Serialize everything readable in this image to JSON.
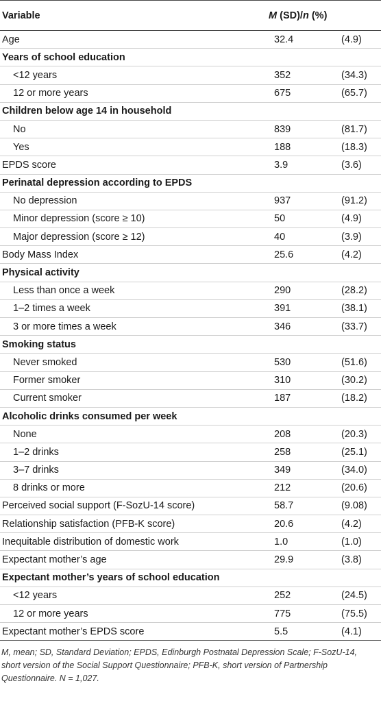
{
  "header": {
    "variable": "Variable",
    "stat_m": "M",
    "stat_sd": " (SD)/",
    "stat_n": "n",
    "stat_pct": " (%)"
  },
  "rows": [
    {
      "label": "Age",
      "kind": "plain",
      "m": "32.4",
      "p": "(4.9)"
    },
    {
      "label": "Years of school education",
      "kind": "section",
      "m": "",
      "p": ""
    },
    {
      "label": "<12 years",
      "kind": "indent",
      "m": "352",
      "p": "(34.3)"
    },
    {
      "label": "12 or more years",
      "kind": "indent",
      "m": "675",
      "p": "(65.7)"
    },
    {
      "label": "Children below age 14 in household",
      "kind": "section",
      "m": "",
      "p": ""
    },
    {
      "label": "No",
      "kind": "indent",
      "m": "839",
      "p": "(81.7)"
    },
    {
      "label": "Yes",
      "kind": "indent",
      "m": "188",
      "p": "(18.3)"
    },
    {
      "label": "EPDS score",
      "kind": "plain",
      "m": "3.9",
      "p": "(3.6)"
    },
    {
      "label": "Perinatal depression according to EPDS",
      "kind": "section",
      "m": "",
      "p": ""
    },
    {
      "label": "No depression",
      "kind": "indent",
      "m": "937",
      "p": "(91.2)"
    },
    {
      "label": "Minor depression (score ≥ 10)",
      "kind": "indent",
      "m": "50",
      "p": "(4.9)"
    },
    {
      "label": "Major depression (score ≥ 12)",
      "kind": "indent",
      "m": "40",
      "p": "(3.9)"
    },
    {
      "label": "Body Mass Index",
      "kind": "plain",
      "m": "25.6",
      "p": "(4.2)"
    },
    {
      "label": "Physical activity",
      "kind": "section",
      "m": "",
      "p": ""
    },
    {
      "label": "Less than once a week",
      "kind": "indent",
      "m": "290",
      "p": "(28.2)"
    },
    {
      "label": "1–2 times a week",
      "kind": "indent",
      "m": "391",
      "p": "(38.1)"
    },
    {
      "label": "3 or more times a week",
      "kind": "indent",
      "m": "346",
      "p": "(33.7)"
    },
    {
      "label": "Smoking status",
      "kind": "section",
      "m": "",
      "p": ""
    },
    {
      "label": "Never smoked",
      "kind": "indent",
      "m": "530",
      "p": "(51.6)"
    },
    {
      "label": "Former smoker",
      "kind": "indent",
      "m": "310",
      "p": "(30.2)"
    },
    {
      "label": "Current smoker",
      "kind": "indent",
      "m": "187",
      "p": "(18.2)"
    },
    {
      "label": "Alcoholic drinks consumed per week",
      "kind": "section",
      "m": "",
      "p": ""
    },
    {
      "label": "None",
      "kind": "indent",
      "m": "208",
      "p": "(20.3)"
    },
    {
      "label": "1–2 drinks",
      "kind": "indent",
      "m": "258",
      "p": "(25.1)"
    },
    {
      "label": "3–7 drinks",
      "kind": "indent",
      "m": "349",
      "p": "(34.0)"
    },
    {
      "label": "8 drinks or more",
      "kind": "indent",
      "m": "212",
      "p": "(20.6)"
    },
    {
      "label": "Perceived social support (F-SozU-14 score)",
      "kind": "plain",
      "m": "58.7",
      "p": "(9.08)"
    },
    {
      "label": "Relationship satisfaction (PFB-K score)",
      "kind": "plain",
      "m": "20.6",
      "p": "(4.2)"
    },
    {
      "label": "Inequitable distribution of domestic work",
      "kind": "plain",
      "m": "1.0",
      "p": "(1.0)"
    },
    {
      "label": "Expectant mother’s age",
      "kind": "plain",
      "m": "29.9",
      "p": "(3.8)"
    },
    {
      "label": "Expectant mother’s years of school education",
      "kind": "section",
      "m": "",
      "p": ""
    },
    {
      "label": "<12 years",
      "kind": "indent",
      "m": "252",
      "p": "(24.5)"
    },
    {
      "label": "12 or more years",
      "kind": "indent",
      "m": "775",
      "p": "(75.5)"
    },
    {
      "label": "Expectant mother’s EPDS score",
      "kind": "plain",
      "m": "5.5",
      "p": "(4.1)"
    }
  ],
  "footnote": "M, mean; SD, Standard Deviation; EPDS, Edinburgh Postnatal Depression Scale; F-SozU-14, short version of the Social Support Questionnaire; PFB-K, short version of Partnership Questionnaire. N = 1,027."
}
